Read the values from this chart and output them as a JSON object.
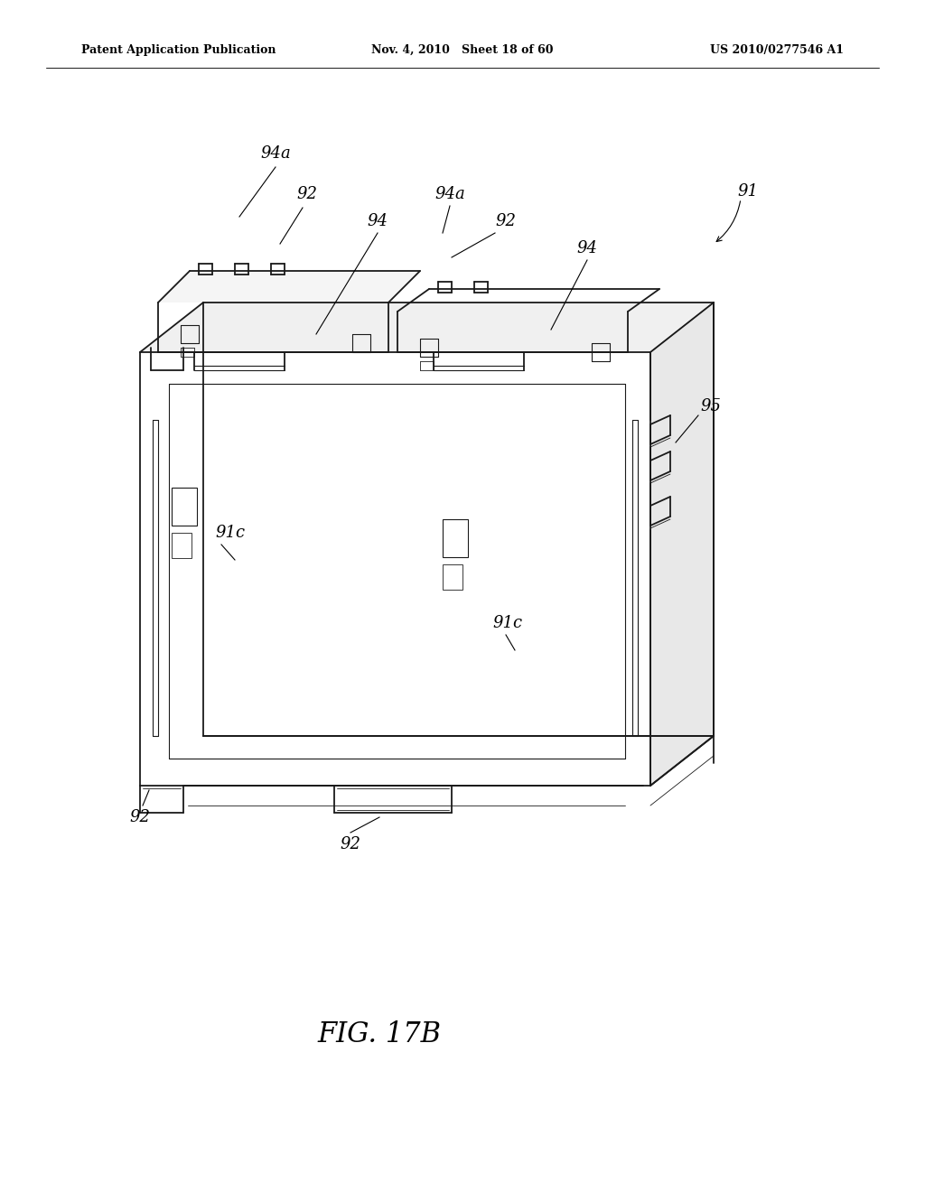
{
  "background_color": "#ffffff",
  "header_left": "Patent Application Publication",
  "header_mid": "Nov. 4, 2010   Sheet 18 of 60",
  "header_right": "US 2010/0277546 A1",
  "figure_label": "FIG. 17B",
  "line_color": "#1a1a1a",
  "lw_main": 1.3,
  "lw_inner": 0.8,
  "lw_thin": 0.6
}
